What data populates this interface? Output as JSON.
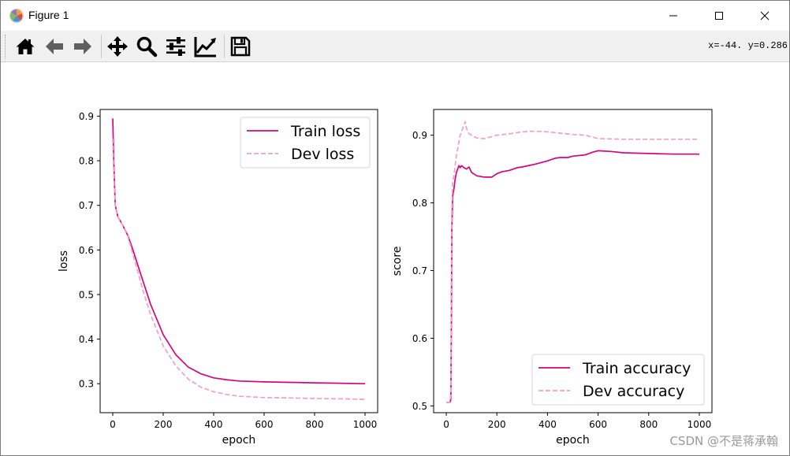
{
  "window": {
    "title": "Figure 1"
  },
  "toolbar": {
    "tools": [
      {
        "name": "home-icon"
      },
      {
        "name": "back-arrow-icon"
      },
      {
        "name": "forward-arrow-icon"
      },
      {
        "name": "pan-icon"
      },
      {
        "name": "zoom-icon"
      },
      {
        "name": "configure-subplots-icon"
      },
      {
        "name": "edit-axes-icon"
      },
      {
        "name": "save-icon"
      }
    ],
    "coord_readout": "x=-44. y=0.286"
  },
  "watermark": "CSDN @不是蒋承翰",
  "colors": {
    "train": "#d5057e",
    "dev": "#f1a0c0"
  },
  "chart_data": [
    {
      "type": "line",
      "xlabel": "epoch",
      "ylabel": "loss",
      "xlim": [
        -50,
        1050
      ],
      "ylim": [
        0.235,
        0.915
      ],
      "xticks": [
        0,
        200,
        400,
        600,
        800,
        1000
      ],
      "yticks": [
        0.3,
        0.4,
        0.5,
        0.6,
        0.7,
        0.8,
        0.9
      ],
      "legend_position": "upper-right",
      "series": [
        {
          "name": "Train loss",
          "style": "solid",
          "x": [
            0,
            5,
            10,
            20,
            30,
            40,
            60,
            80,
            100,
            120,
            150,
            200,
            250,
            300,
            350,
            400,
            450,
            500,
            600,
            700,
            800,
            900,
            1000
          ],
          "y": [
            0.895,
            0.78,
            0.7,
            0.675,
            0.665,
            0.655,
            0.632,
            0.6,
            0.565,
            0.53,
            0.478,
            0.41,
            0.365,
            0.337,
            0.322,
            0.313,
            0.309,
            0.306,
            0.304,
            0.303,
            0.302,
            0.301,
            0.3
          ]
        },
        {
          "name": "Dev loss",
          "style": "dashed",
          "x": [
            0,
            5,
            10,
            20,
            30,
            40,
            60,
            80,
            100,
            120,
            150,
            200,
            250,
            300,
            350,
            400,
            450,
            500,
            600,
            700,
            800,
            900,
            1000
          ],
          "y": [
            0.85,
            0.76,
            0.7,
            0.675,
            0.665,
            0.655,
            0.63,
            0.59,
            0.55,
            0.508,
            0.455,
            0.385,
            0.34,
            0.31,
            0.292,
            0.282,
            0.276,
            0.272,
            0.269,
            0.268,
            0.267,
            0.266,
            0.265
          ]
        }
      ]
    },
    {
      "type": "line",
      "xlabel": "epoch",
      "ylabel": "score",
      "xlim": [
        -50,
        1050
      ],
      "ylim": [
        0.49,
        0.938
      ],
      "xticks": [
        0,
        200,
        400,
        600,
        800,
        1000
      ],
      "yticks": [
        0.5,
        0.6,
        0.7,
        0.8,
        0.9
      ],
      "legend_position": "lower-right",
      "series": [
        {
          "name": "Train accuracy",
          "style": "solid",
          "x": [
            0,
            15,
            18,
            20,
            22,
            25,
            30,
            35,
            40,
            45,
            50,
            55,
            60,
            70,
            80,
            90,
            100,
            120,
            150,
            180,
            200,
            220,
            250,
            280,
            300,
            350,
            400,
            430,
            450,
            480,
            500,
            550,
            580,
            600,
            650,
            700,
            800,
            900,
            1000
          ],
          "y": [
            0.505,
            0.505,
            0.51,
            0.62,
            0.76,
            0.81,
            0.82,
            0.835,
            0.845,
            0.85,
            0.855,
            0.852,
            0.855,
            0.852,
            0.85,
            0.853,
            0.845,
            0.84,
            0.838,
            0.838,
            0.843,
            0.846,
            0.848,
            0.852,
            0.853,
            0.857,
            0.862,
            0.866,
            0.867,
            0.867,
            0.869,
            0.871,
            0.875,
            0.877,
            0.876,
            0.874,
            0.873,
            0.872,
            0.872
          ]
        },
        {
          "name": "Dev accuracy",
          "style": "dashed",
          "x": [
            0,
            15,
            18,
            20,
            22,
            25,
            30,
            35,
            40,
            45,
            50,
            55,
            60,
            70,
            75,
            80,
            85,
            90,
            100,
            120,
            150,
            200,
            250,
            300,
            350,
            400,
            450,
            500,
            550,
            600,
            700,
            800,
            900,
            1000
          ],
          "y": [
            0.505,
            0.505,
            0.52,
            0.68,
            0.79,
            0.83,
            0.84,
            0.855,
            0.87,
            0.88,
            0.89,
            0.9,
            0.905,
            0.915,
            0.92,
            0.91,
            0.905,
            0.902,
            0.9,
            0.896,
            0.895,
            0.9,
            0.902,
            0.905,
            0.906,
            0.905,
            0.903,
            0.901,
            0.9,
            0.895,
            0.894,
            0.894,
            0.894,
            0.894
          ]
        }
      ]
    }
  ]
}
